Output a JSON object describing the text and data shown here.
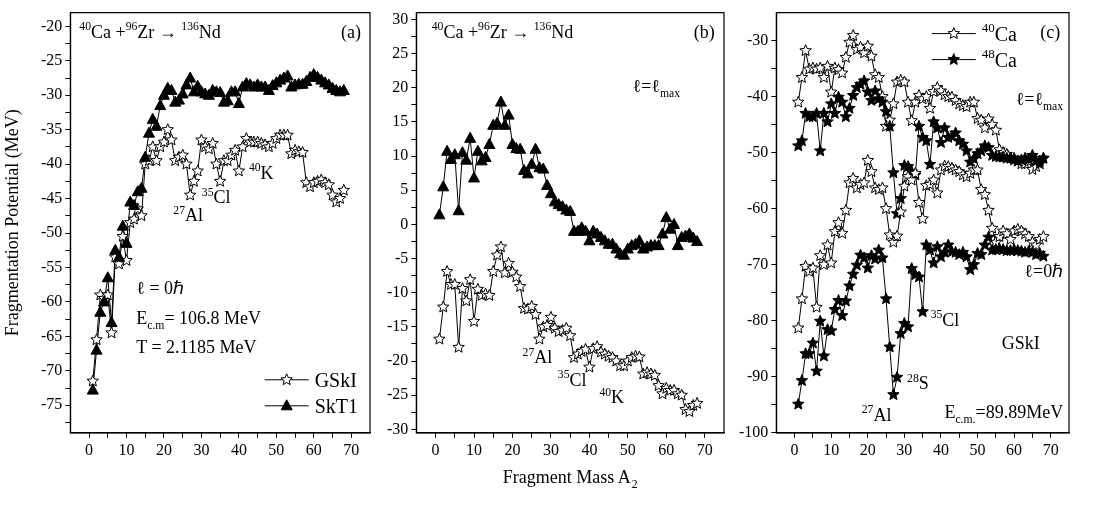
{
  "chart_data": [
    {
      "type": "line",
      "ylabel": "Fragmentation Potential (MeV)",
      "legend": "bottom right",
      "grid": false,
      "line_style": "solid",
      "x": [
        1,
        2,
        3,
        4,
        5,
        6,
        7,
        8,
        9,
        10,
        11,
        12,
        13,
        14,
        15,
        16,
        17,
        18,
        19,
        20,
        21,
        22,
        23,
        24,
        25,
        26,
        27,
        28,
        29,
        30,
        31,
        32,
        33,
        34,
        35,
        36,
        37,
        38,
        39,
        40,
        41,
        42,
        43,
        44,
        45,
        46,
        47,
        48,
        49,
        50,
        51,
        52,
        53,
        54,
        55,
        56,
        57,
        58,
        59,
        60,
        61,
        62,
        63,
        64,
        65,
        66,
        67,
        68
      ],
      "xlim": [
        -5,
        75
      ],
      "xticks": [
        0,
        {
          "value": 5,
          "label": null
        },
        10,
        {
          "value": 15,
          "label": null
        },
        20,
        {
          "value": 25,
          "label": null
        },
        30,
        {
          "value": 35,
          "label": null
        },
        40,
        {
          "value": 45,
          "label": null
        },
        50,
        {
          "value": 55,
          "label": null
        },
        60,
        {
          "value": 65,
          "label": null
        },
        70
      ],
      "ylim": [
        -79,
        -18
      ],
      "yticks": [
        {
          "value": -77.5,
          "label": null
        },
        -75,
        {
          "value": -72.5,
          "label": null
        },
        -70,
        {
          "value": -67.5,
          "label": null
        },
        -65,
        {
          "value": -62.5,
          "label": null
        },
        -60,
        {
          "value": -57.5,
          "label": null
        },
        -55,
        {
          "value": -52.5,
          "label": null
        },
        -50,
        {
          "value": -47.5,
          "label": null
        },
        -45,
        {
          "value": -42.5,
          "label": null
        },
        -40,
        {
          "value": -37.5,
          "label": null
        },
        -35,
        {
          "value": -32.5,
          "label": null
        },
        -30,
        {
          "value": -27.5,
          "label": null
        },
        -25,
        {
          "value": -22.5,
          "label": null
        },
        -20
      ],
      "series": [
        {
          "name": "GSkI",
          "color": "#ffffff",
          "marker": "star",
          "values": [
            -71.5,
            -65.5,
            -59,
            -59.5,
            -59,
            -64.5,
            -53.5,
            -54.5,
            -50.5,
            -54,
            -48.5,
            -48,
            -46.5,
            -47.5,
            -40,
            -39.5,
            -37.5,
            -39.5,
            -37.5,
            -36.8,
            -35,
            -36.5,
            -39.5,
            -39,
            -38.7,
            -40,
            -44.5,
            -42.5,
            -41,
            -36.5,
            -37.5,
            -37.8,
            -37,
            -40,
            -42.5,
            -39.5,
            -39.5,
            -38.7,
            -38,
            -41,
            -37.5,
            -36.3,
            -36.8,
            -36.8,
            -36.8,
            -37,
            -37.2,
            -37.5,
            -37,
            -36.3,
            -35.8,
            -35.8,
            -35.8,
            -38.5,
            -38,
            -38.2,
            -38.3,
            -42.7,
            -43.3,
            -42.7,
            -42.5,
            -42.3,
            -42.7,
            -43,
            -44.5,
            -45.5,
            -45,
            -43.8
          ]
        },
        {
          "name": "SkT1",
          "color": "#000000",
          "marker": "triangle",
          "values": [
            -72.8,
            -67,
            -61.5,
            -60,
            -56.5,
            -63,
            -52.5,
            -53.5,
            -49,
            -51.5,
            -45.5,
            -46,
            -44,
            -43.5,
            -39,
            -35.5,
            -33.5,
            -34.5,
            -31.5,
            -30,
            -29,
            -29.3,
            -31,
            -30.7,
            -29.8,
            -28.5,
            -27.5,
            -29.5,
            -28.7,
            -29.5,
            -29.8,
            -30,
            -29.3,
            -29.5,
            -29.6,
            -31,
            -30.8,
            -29.5,
            -29.5,
            -31.2,
            -28.8,
            -28.3,
            -28.5,
            -28.8,
            -28.5,
            -28.8,
            -28.8,
            -29.3,
            -28.6,
            -28.2,
            -27.8,
            -27.5,
            -27.2,
            -28.8,
            -28.5,
            -28.4,
            -28.4,
            -28,
            -27.4,
            -27,
            -27.4,
            -27.8,
            -28.2,
            -28.5,
            -29,
            -29.3,
            -29.5,
            -29.3
          ]
        }
      ],
      "annotations": [
        "$^{40}$Ca +$^{96}$Zr → $^{136}$Nd",
        "(a)",
        "ℓ = 0ℏ",
        "E$_{c.m}$= 106.8 MeV",
        "T = 2.1185 MeV",
        {
          "text": "$^{27}$Al",
          "x": 27,
          "y": -44.5
        },
        {
          "text": "$^{35}$Cl",
          "x": 35,
          "y": -42.5
        },
        {
          "text": "$^{40}$K",
          "x": 40,
          "y": -41
        }
      ]
    },
    {
      "type": "line",
      "xlabel": "Fragment Mass A$_{2}$",
      "grid": false,
      "line_style": "solid",
      "x": [
        1,
        2,
        3,
        4,
        5,
        6,
        7,
        8,
        9,
        10,
        11,
        12,
        13,
        14,
        15,
        16,
        17,
        18,
        19,
        20,
        21,
        22,
        23,
        24,
        25,
        26,
        27,
        28,
        29,
        30,
        31,
        32,
        33,
        34,
        35,
        36,
        37,
        38,
        39,
        40,
        41,
        42,
        43,
        44,
        45,
        46,
        47,
        48,
        49,
        50,
        51,
        52,
        53,
        54,
        55,
        56,
        57,
        58,
        59,
        60,
        61,
        62,
        63,
        64,
        65,
        66,
        67,
        68
      ],
      "xlim": [
        -5,
        75
      ],
      "xticks": [
        0,
        {
          "value": 5,
          "label": null
        },
        10,
        {
          "value": 15,
          "label": null
        },
        20,
        {
          "value": 25,
          "label": null
        },
        30,
        {
          "value": 35,
          "label": null
        },
        40,
        {
          "value": 45,
          "label": null
        },
        50,
        {
          "value": 55,
          "label": null
        },
        60,
        {
          "value": 65,
          "label": null
        },
        70
      ],
      "ylim": [
        -30.5,
        31
      ],
      "yticks": [
        -30,
        {
          "value": -27.5,
          "label": null
        },
        -25,
        {
          "value": -22.5,
          "label": null
        },
        -20,
        {
          "value": -17.5,
          "label": null
        },
        -15,
        {
          "value": -12.5,
          "label": null
        },
        -10,
        {
          "value": -7.5,
          "label": null
        },
        -5,
        {
          "value": -2.5,
          "label": null
        },
        0,
        {
          "value": 2.5,
          "label": null
        },
        5,
        {
          "value": 7.5,
          "label": null
        },
        10,
        {
          "value": 12.5,
          "label": null
        },
        15,
        {
          "value": 17.5,
          "label": null
        },
        20,
        {
          "value": 22.5,
          "label": null
        },
        25,
        {
          "value": 27.5,
          "label": null
        },
        30
      ],
      "series": [
        {
          "color": "#000000",
          "marker": "triangle",
          "values": [
            1.4,
            5.5,
            10.7,
            9.5,
            10.2,
            2,
            10.5,
            9.4,
            12.6,
            6.8,
            10.7,
            9.3,
            9.8,
            11.7,
            14.5,
            14.8,
            17.9,
            14.5,
            16,
            11.7,
            11.1,
            11,
            7.9,
            7.4,
            8.8,
            11,
            8.3,
            8.1,
            5.7,
            4.5,
            3.3,
            2.9,
            2.6,
            2.1,
            1.9,
            -1,
            -1,
            -0.5,
            -1,
            -2.4,
            -1,
            -1.4,
            -1.9,
            -2.4,
            -2.9,
            -2.9,
            -3.6,
            -4.3,
            -4.5,
            -3.6,
            -3.1,
            -2.9,
            -2.4,
            -3.6,
            -3.3,
            -3.1,
            -3.1,
            -3.1,
            -1.4,
            1,
            -0.7,
            0,
            -3.1,
            -1.9,
            -1.7,
            -1.4,
            -2,
            -2.5
          ]
        },
        {
          "color": "#ffffff",
          "marker": "star",
          "values": [
            -16.8,
            -12.1,
            -6.9,
            -8.8,
            -8.8,
            -18,
            -9.4,
            -11.2,
            -8.1,
            -14.2,
            -9.5,
            -10.4,
            -10.2,
            -10.4,
            -6.9,
            -4.5,
            -3.3,
            -7.1,
            -5.7,
            -7,
            -7.7,
            -9.1,
            -12.3,
            -12.4,
            -12,
            -13.2,
            -16.8,
            -15,
            -14.8,
            -13.6,
            -15.2,
            -15.7,
            -15.5,
            -15.2,
            -16.3,
            -19.5,
            -19,
            -18.6,
            -18.3,
            -20.9,
            -18.2,
            -17.9,
            -18.7,
            -19,
            -19.3,
            -19.5,
            -20,
            -20.7,
            -20.7,
            -20,
            -19.5,
            -19.3,
            -19.4,
            -21.9,
            -21.7,
            -21.9,
            -22.1,
            -23.6,
            -24.8,
            -24,
            -24.3,
            -24.3,
            -24.8,
            -25,
            -27.1,
            -27.4,
            -26.5,
            -26.2
          ]
        }
      ],
      "annotations": [
        "$^{40}$Ca +$^{96}$Zr → $^{136}$Nd",
        "(b)",
        "ℓ=ℓ$_{max}$",
        {
          "text": "$^{27}$Al",
          "x": 27,
          "y": -16.8
        },
        {
          "text": "$^{35}$Cl",
          "x": 35,
          "y": -16.3
        },
        {
          "text": "$^{40}$K",
          "x": 40,
          "y": -20.9
        }
      ]
    },
    {
      "type": "line",
      "legend": "top right",
      "grid": false,
      "line_style": "solid",
      "x": [
        1,
        2,
        3,
        4,
        5,
        6,
        7,
        8,
        9,
        10,
        11,
        12,
        13,
        14,
        15,
        16,
        17,
        18,
        19,
        20,
        21,
        22,
        23,
        24,
        25,
        26,
        27,
        28,
        29,
        30,
        31,
        32,
        33,
        34,
        35,
        36,
        37,
        38,
        39,
        40,
        41,
        42,
        43,
        44,
        45,
        46,
        47,
        48,
        49,
        50,
        51,
        52,
        53,
        54,
        55,
        56,
        57,
        58,
        59,
        60,
        61,
        62,
        63,
        64,
        65,
        66,
        67,
        68
      ],
      "xlim": [
        -5,
        75
      ],
      "xticks": [
        0,
        {
          "value": 5,
          "label": null
        },
        10,
        {
          "value": 15,
          "label": null
        },
        20,
        {
          "value": 25,
          "label": null
        },
        30,
        {
          "value": 35,
          "label": null
        },
        40,
        {
          "value": 45,
          "label": null
        },
        50,
        {
          "value": 55,
          "label": null
        },
        60,
        {
          "value": 65,
          "label": null
        },
        70
      ],
      "ylim": [
        -100,
        -25
      ],
      "yticks": [
        -100,
        {
          "value": -95,
          "label": null
        },
        -90,
        {
          "value": -85,
          "label": null
        },
        -80,
        {
          "value": -75,
          "label": null
        },
        -70,
        {
          "value": -65,
          "label": null
        },
        -60,
        {
          "value": -55,
          "label": null
        },
        -50,
        {
          "value": -45,
          "label": null
        },
        -40,
        {
          "value": -35,
          "label": null
        },
        -30
      ],
      "series": [
        {
          "name": "$^{40}$Ca",
          "color": "#ffffff",
          "marker": "star",
          "values": [
            -41,
            -36.6,
            -31.8,
            -35.1,
            -34.9,
            -35.1,
            -34.9,
            -36.6,
            -34.6,
            -39.2,
            -34.9,
            -35.2,
            -35.8,
            -33,
            -30.3,
            -29.1,
            -31.6,
            -31.2,
            -32.2,
            -31,
            -32.8,
            -36.1,
            -36.6,
            -40,
            -45.3,
            -44.2,
            -41.3,
            -37.4,
            -37.1,
            -37.4,
            -41,
            -44.3,
            -41,
            -39.8,
            -40.4,
            -40,
            -42.1,
            -39.1,
            -38.4,
            -39,
            -39.7,
            -40,
            -40.1,
            -40.7,
            -41.3,
            -41.6,
            -41.8,
            -41,
            -41,
            -43.9,
            -44.2,
            -45.6,
            -44,
            -45,
            -46,
            -49.5,
            -50,
            -50.3,
            -51,
            -51,
            -51.5,
            -52,
            -52,
            -51.5,
            -53,
            -52.5,
            -51.5,
            -51
          ]
        },
        {
          "name": "$^{48}$Ca",
          "color": "#000000",
          "marker": "star",
          "values": [
            -48.8,
            -47.9,
            -43,
            -43.6,
            -43.6,
            -43,
            -49.7,
            -43,
            -44.5,
            -41.3,
            -43,
            -40.1,
            -41,
            -43.6,
            -42.1,
            -39.8,
            -38.4,
            -37.8,
            -37.2,
            -39.2,
            -40.7,
            -39,
            -40.4,
            -41,
            -42.7,
            -45.3,
            -53.6,
            -60.9,
            -58.2,
            -52.3,
            -52.5,
            -53.4,
            -54,
            -45.3,
            -47.3,
            -47.9,
            -52.1,
            -44.5,
            -45.6,
            -48.2,
            -45.6,
            -47.3,
            -47.1,
            -46.5,
            -47.9,
            -48.5,
            -49.7,
            -51.7,
            -51.1,
            -50.2,
            -49.7,
            -48.8,
            -49.1,
            -50.5,
            -50.7,
            -50.8,
            -50.8,
            -51,
            -51,
            -51.3,
            -51.5,
            -51.3,
            -51,
            -51.2,
            -50.5,
            -51.5,
            -52,
            -51
          ]
        },
        {
          "color": "#ffffff",
          "marker": "star",
          "values": [
            -81.3,
            -76.1,
            -70.3,
            -71.2,
            -70.6,
            -77.6,
            -68.4,
            -70,
            -66.5,
            -69.7,
            -64.1,
            -62.5,
            -64.4,
            -60.3,
            -55.4,
            -54.6,
            -56.3,
            -55.7,
            -55.4,
            -51.4,
            -53.4,
            -56.3,
            -56.6,
            -56.3,
            -60,
            -64.7,
            -66,
            -64.9,
            -60.6,
            -56,
            -54.3,
            -54.9,
            -53.7,
            -58.9,
            -61.8,
            -55.9,
            -55.7,
            -54.9,
            -57.2,
            -53.1,
            -52.4,
            -52.5,
            -52.8,
            -53.1,
            -53.4,
            -54,
            -54.3,
            -53.7,
            -53.1,
            -53.1,
            -56.6,
            -57.5,
            -60.3,
            -63.5,
            -66,
            -65,
            -64,
            -64.5,
            -65.5,
            -64,
            -63.7,
            -64,
            -64.5,
            -65,
            -66,
            -66.5,
            -65.5,
            -65
          ]
        },
        {
          "color": "#000000",
          "marker": "star",
          "values": [
            -94.9,
            -90.7,
            -85.9,
            -85.9,
            -84,
            -89,
            -80.1,
            -86.3,
            -81.6,
            -81.8,
            -78,
            -76.4,
            -79.1,
            -76.5,
            -73.8,
            -71.7,
            -70.1,
            -68.3,
            -68.8,
            -70.6,
            -68.4,
            -69,
            -67.4,
            -68.8,
            -76.1,
            -84.7,
            -93.2,
            -90.1,
            -82.3,
            -80.5,
            -81.1,
            -70.7,
            -71.8,
            -72.2,
            -78.4,
            -66.5,
            -67.4,
            -69.7,
            -66.8,
            -68.6,
            -67.8,
            -66.5,
            -67.7,
            -67.8,
            -68.2,
            -67.8,
            -68.6,
            -70.9,
            -70,
            -68,
            -68.2,
            -66.5,
            -65.1,
            -67.4,
            -67.3,
            -67.2,
            -67.3,
            -67.5,
            -67.5,
            -67.3,
            -67.5,
            -67.6,
            -67.8,
            -67.6,
            -67.8,
            -68.2,
            -68,
            -68.5
          ]
        }
      ],
      "annotations": [
        "(c)",
        "ℓ=ℓ$_{max}$",
        "ℓ=0ℏ",
        "GSkI",
        "E$_{c.m.}$=89.89MeV",
        {
          "text": "$^{35}$Cl",
          "x": 35,
          "y": -78.4
        },
        {
          "text": "$^{28}$S",
          "x": 28,
          "y": -90.1
        },
        {
          "text": "$^{27}$Al",
          "x": 27,
          "y": -93.2
        }
      ]
    }
  ]
}
